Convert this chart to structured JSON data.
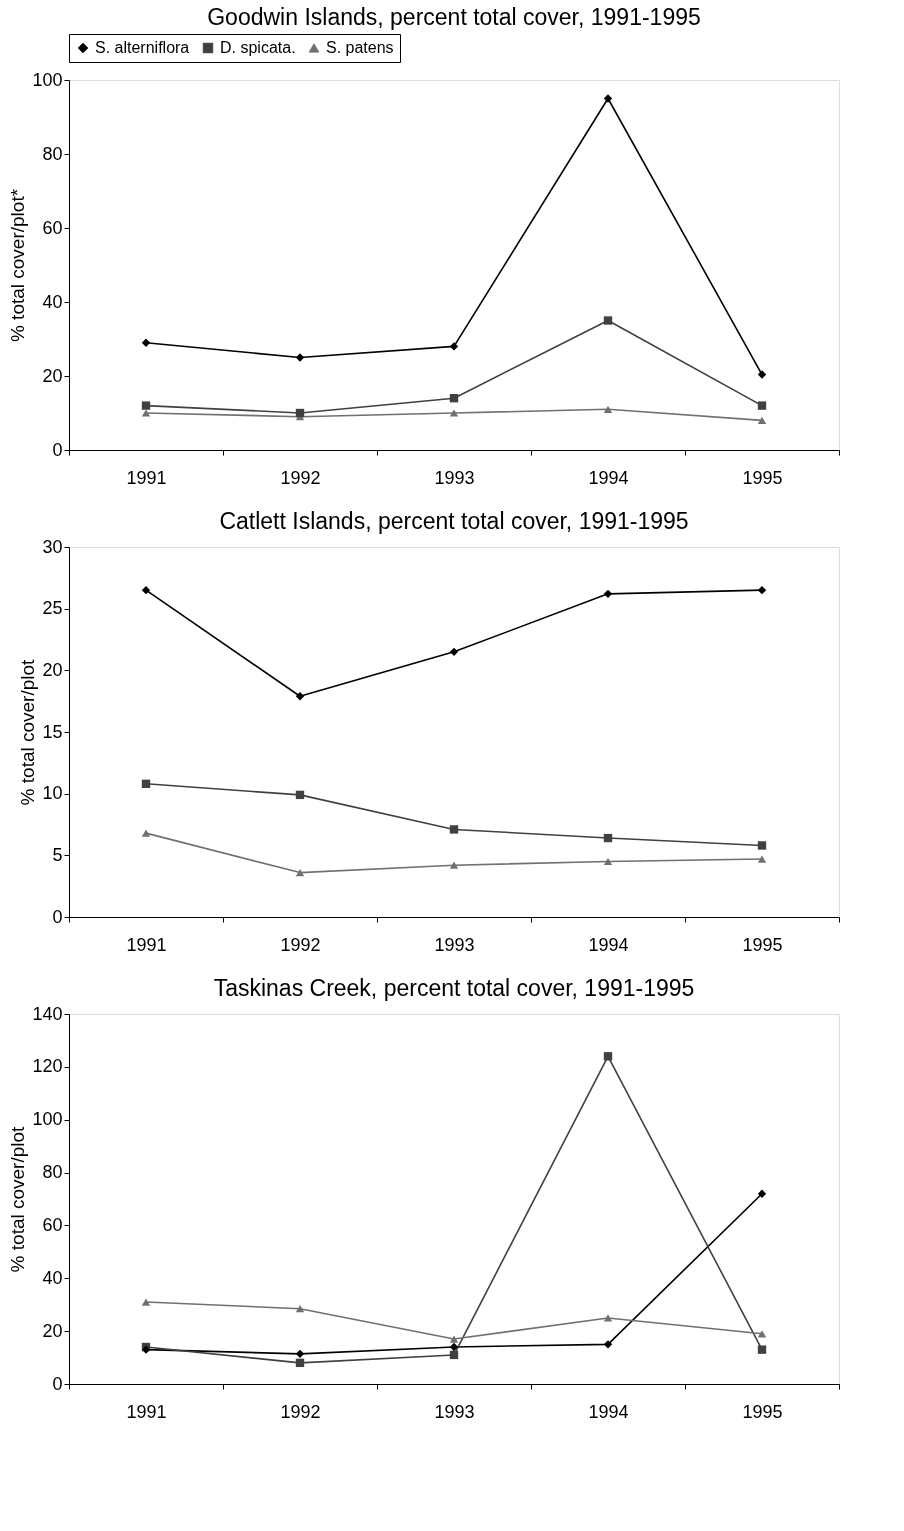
{
  "chart_data": [
    {
      "type": "line",
      "title": "Goodwin Islands, percent total cover, 1991-1995",
      "ylabel": "% total cover/plot*",
      "categories": [
        "1991",
        "1992",
        "1993",
        "1994",
        "1995"
      ],
      "ylim": [
        0,
        100
      ],
      "yticks": [
        0,
        20,
        40,
        60,
        80,
        100
      ],
      "grid": false,
      "legend": "top",
      "series": [
        {
          "name": "S. alterniflora",
          "color": "#000000",
          "marker": "diamond",
          "values": [
            29,
            25,
            28,
            95,
            20.4
          ]
        },
        {
          "name": "D. spicata.",
          "color": "#404040",
          "marker": "square",
          "values": [
            12,
            10,
            14,
            35,
            12
          ]
        },
        {
          "name": "S. patens",
          "color": "#707070",
          "marker": "triangle",
          "values": [
            10,
            9,
            10,
            11,
            8
          ]
        }
      ]
    },
    {
      "type": "line",
      "title": "Catlett Islands, percent total cover, 1991-1995",
      "ylabel": "% total cover/plot",
      "categories": [
        "1991",
        "1992",
        "1993",
        "1994",
        "1995"
      ],
      "ylim": [
        0,
        30
      ],
      "yticks": [
        0,
        5,
        10,
        15,
        20,
        25,
        30
      ],
      "grid": false,
      "series": [
        {
          "color": "#000000",
          "marker": "diamond",
          "values": [
            26.5,
            17.9,
            21.5,
            26.2,
            26.5
          ]
        },
        {
          "color": "#404040",
          "marker": "square",
          "values": [
            10.8,
            9.9,
            7.1,
            6.4,
            5.8
          ]
        },
        {
          "color": "#707070",
          "marker": "triangle",
          "values": [
            6.8,
            3.6,
            4.2,
            4.5,
            4.7
          ]
        }
      ]
    },
    {
      "type": "line",
      "title": "Taskinas Creek, percent total cover, 1991-1995",
      "ylabel": "% total cover/plot",
      "categories": [
        "1991",
        "1992",
        "1993",
        "1994",
        "1995"
      ],
      "ylim": [
        0,
        140
      ],
      "yticks": [
        0,
        20,
        40,
        60,
        80,
        100,
        120,
        140
      ],
      "grid": false,
      "series": [
        {
          "color": "#000000",
          "marker": "diamond",
          "values": [
            13,
            11.4,
            14,
            15,
            72
          ]
        },
        {
          "color": "#404040",
          "marker": "square",
          "values": [
            14,
            8,
            11,
            124,
            13
          ]
        },
        {
          "color": "#707070",
          "marker": "triangle",
          "values": [
            31,
            28.5,
            17,
            25,
            19
          ]
        }
      ]
    }
  ]
}
